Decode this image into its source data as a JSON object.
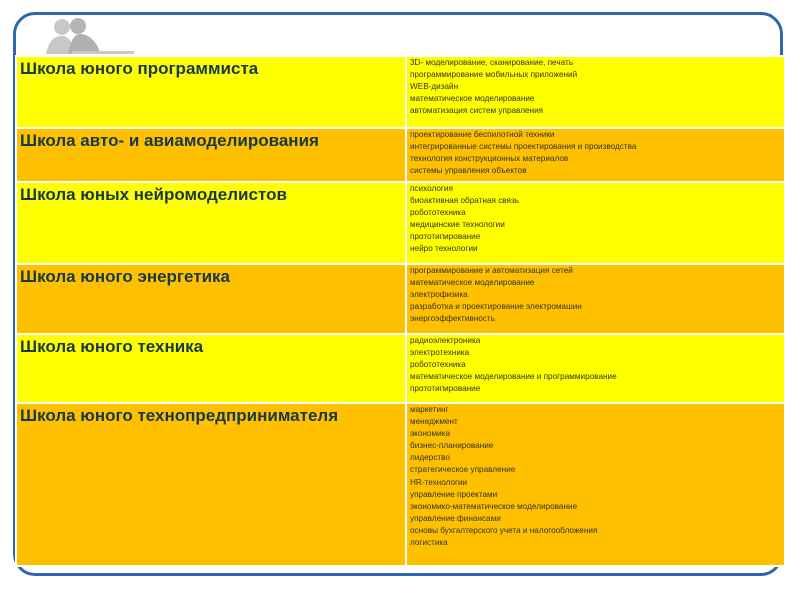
{
  "colors": {
    "yellow": "#ffff00",
    "orange": "#ffc000",
    "frame": "#2e67ae",
    "title_text": "#17394a"
  },
  "logo_icon": "people-at-computer-silhouette",
  "rows": [
    {
      "school": "Школа юного программиста",
      "topics": [
        "3D- моделирование, сканирование, печать",
        "программирование мобильных приложений",
        "WEB-дизайн",
        "математическое моделирование",
        "автоматизация систем управления"
      ]
    },
    {
      "school": "Школа авто- и авиамоделирования",
      "topics": [
        "проектирование беспилотной техники",
        "интегрированные системы проектирования и производства",
        "технология конструкционных материалов",
        "системы управления объектов"
      ]
    },
    {
      "school": "Школа  юных нейромоделистов",
      "topics": [
        "психология",
        "биоактивная обратная связь",
        "робототехника",
        "медицинские технологии",
        "прототипирование",
        "нейро технологии"
      ]
    },
    {
      "school": "Школа юного энергетика",
      "topics": [
        "программирование и автоматизация сетей",
        "математическое моделирование",
        "электрофизика",
        "разработка и проектирование электромашин",
        "энергоэффективность"
      ]
    },
    {
      "school": "Школа юного техника",
      "topics": [
        "радиоэлектроника",
        "электротехника",
        "робототехника",
        "математическое моделирование и программирование",
        "прототипирование"
      ]
    },
    {
      "school": "Школа юного технопредпринимателя",
      "topics": [
        "маркетинг",
        "менеджмент",
        "экономика",
        "бизнес-планирование",
        "лидерство",
        "стратегическое управление",
        "HR-технологии",
        "управление проектами",
        "экономико-математическое моделирование",
        "управление финансами",
        "основы бухгалтерского учета и налогообложения",
        "логистика"
      ]
    }
  ]
}
